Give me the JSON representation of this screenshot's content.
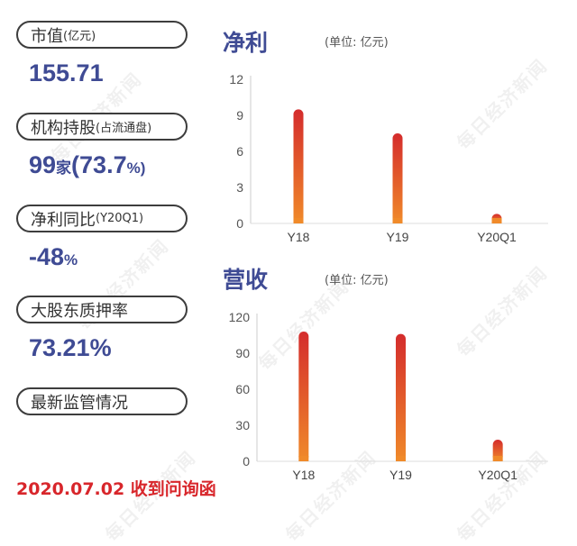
{
  "metrics": [
    {
      "label": "市值",
      "label_small": "(亿元)",
      "value": "155.71",
      "unit": ""
    },
    {
      "label": "机构持股",
      "label_small": "(占流通盘)",
      "value": "99",
      "unit": "家",
      "value2": "(73.7",
      "unit2": "%)"
    },
    {
      "label": "净利同比",
      "label_small": "(Y20Q1)",
      "value": "-48",
      "unit": "%"
    },
    {
      "label": "大股东质押率",
      "label_small": "",
      "value": "73.21%",
      "unit": ""
    },
    {
      "label": "最新监管情况",
      "label_small": ""
    }
  ],
  "footer": "2020.07.02 收到问询函",
  "watermark": "每日经济新闻",
  "chart_data": [
    {
      "type": "bar",
      "title": "净利",
      "unit_label": "(单位: 亿元)",
      "categories": [
        "Y18",
        "Y19",
        "Y20Q1"
      ],
      "values": [
        9.5,
        7.5,
        0.8
      ],
      "yticks": [
        0,
        3,
        6,
        9,
        12
      ],
      "ylim": [
        0,
        12
      ],
      "grid": false,
      "bar_gradient": [
        "#d42c2c",
        "#f08a2a"
      ]
    },
    {
      "type": "bar",
      "title": "营收",
      "unit_label": "(单位: 亿元)",
      "categories": [
        "Y18",
        "Y19",
        "Y20Q1"
      ],
      "values": [
        108,
        106,
        18
      ],
      "yticks": [
        0,
        30,
        60,
        90,
        120
      ],
      "ylim": [
        0,
        120
      ],
      "grid": false,
      "bar_gradient": [
        "#d42c2c",
        "#f08a2a"
      ]
    }
  ]
}
